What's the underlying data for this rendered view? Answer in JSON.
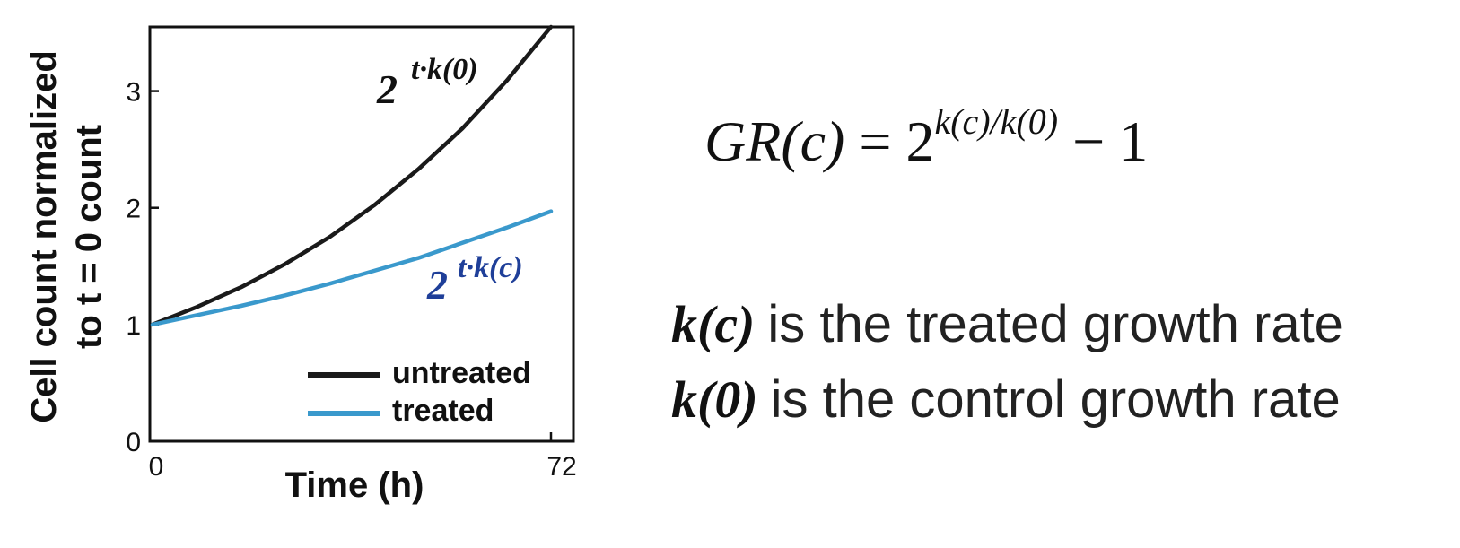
{
  "chart_data": {
    "type": "line",
    "xlabel": "Time (h)",
    "ylabel_lines": [
      "Cell count normalized",
      "to t = 0 count"
    ],
    "xlim": [
      0,
      72
    ],
    "ylim": [
      0,
      3.55
    ],
    "x_ticks": [
      "0",
      "72"
    ],
    "y_ticks": [
      "0",
      "1",
      "2",
      "3"
    ],
    "grid": false,
    "legend_position": "bottom-right",
    "series": [
      {
        "name": "untreated",
        "color": "#1a1a1a",
        "x": [
          0,
          8,
          16,
          24,
          32,
          40,
          48,
          56,
          64,
          72
        ],
        "y": [
          1.0,
          1.15,
          1.32,
          1.52,
          1.75,
          2.02,
          2.33,
          2.68,
          3.09,
          3.55
        ]
      },
      {
        "name": "treated",
        "color": "#3a99cc",
        "x": [
          0,
          8,
          16,
          24,
          32,
          40,
          48,
          56,
          64,
          72
        ],
        "y": [
          1.0,
          1.08,
          1.16,
          1.25,
          1.35,
          1.46,
          1.57,
          1.7,
          1.83,
          1.97
        ]
      }
    ],
    "annotations": [
      {
        "base": "2",
        "exponent": "t·k(0)",
        "color": "#111111"
      },
      {
        "base": "2",
        "exponent": "t·k(c)",
        "color": "#1f3f99"
      }
    ]
  },
  "formula": {
    "lhs": "GR(c)",
    "equals": "=",
    "base": "2",
    "exponent": "k(c)/k(0)",
    "tail": "− 1"
  },
  "definitions": [
    {
      "term": "k(c)",
      "text": "is the treated growth rate"
    },
    {
      "term": "k(0)",
      "text": "is the control growth rate"
    }
  ]
}
